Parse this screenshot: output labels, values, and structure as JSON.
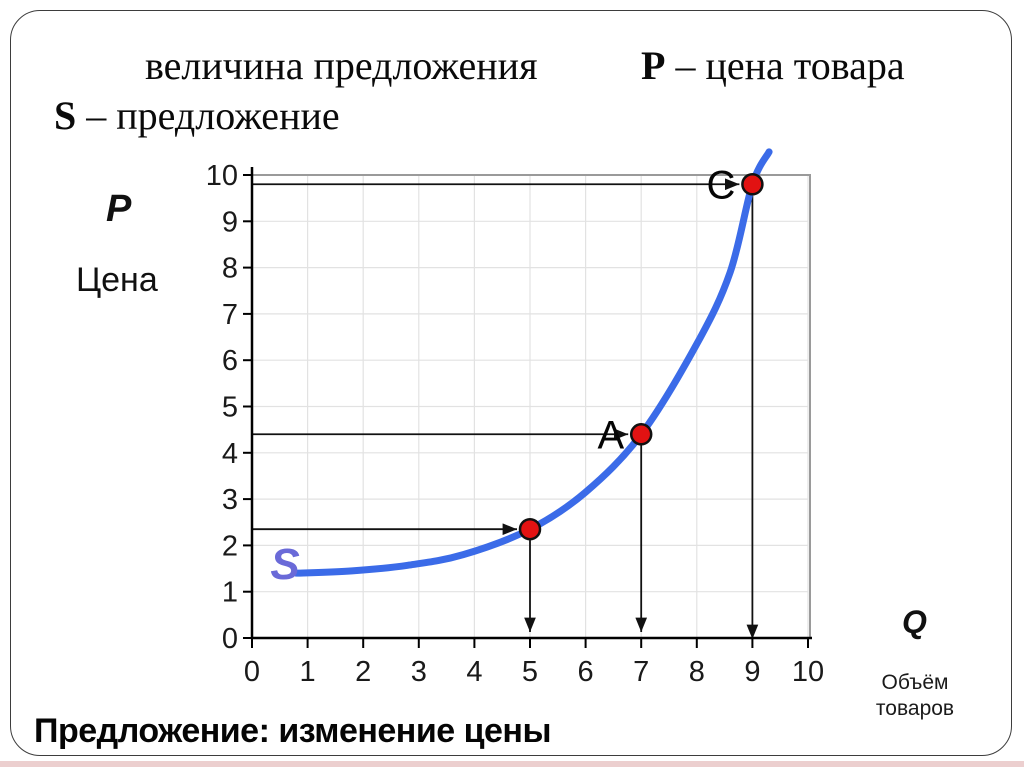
{
  "title": {
    "line1_left": "величина предложения",
    "p_symbol": "P",
    "p_rest": " – цена товара",
    "s_symbol": "S",
    "s_rest": " – предложение"
  },
  "axis_labels": {
    "y_symbol": "P",
    "y_name": "Цена",
    "x_symbol": "Q",
    "x_name_line1": "Объём",
    "x_name_line2": "товаров"
  },
  "footer": {
    "text": "Предложение: изменение цены"
  },
  "colors": {
    "curve": "#3b6be8",
    "curve_label": "#6a6ad8",
    "marker_fill": "#e21212",
    "marker_stroke": "#111111",
    "grid": "#e2e2e2",
    "plot_border": "#9a9a9a",
    "axis": "#000000",
    "arrow": "#111111",
    "tick_text": "#1a1a1a",
    "bottom_strip": "#eccfcf"
  },
  "chart_data": {
    "type": "line",
    "title": "величина предложения",
    "xlabel": "Q — Объём товаров",
    "ylabel": "P — Цена",
    "xlim": [
      0,
      10
    ],
    "ylim": [
      0,
      10
    ],
    "x_ticks": [
      0,
      1,
      2,
      3,
      4,
      5,
      6,
      7,
      8,
      9,
      10
    ],
    "y_ticks": [
      0,
      1,
      2,
      3,
      4,
      5,
      6,
      7,
      8,
      9,
      10
    ],
    "grid": true,
    "series": [
      {
        "name": "S",
        "color": "#3b6be8",
        "points": [
          [
            0.8,
            1.4
          ],
          [
            1.8,
            1.45
          ],
          [
            2.8,
            1.57
          ],
          [
            3.8,
            1.8
          ],
          [
            5,
            2.35
          ],
          [
            6,
            3.15
          ],
          [
            7,
            4.4
          ],
          [
            8,
            6.35
          ],
          [
            8.6,
            7.9
          ],
          [
            9,
            9.8
          ],
          [
            9.3,
            10.5
          ]
        ]
      }
    ],
    "curve_label": {
      "text": "S",
      "color": "#6a6ad8",
      "x": 0.33,
      "y": 1.58
    },
    "marked_points": [
      {
        "label": "",
        "x": 5,
        "y": 2.35
      },
      {
        "label": "A",
        "x": 7,
        "y": 4.4
      },
      {
        "label": "C",
        "x": 9,
        "y": 9.8
      }
    ],
    "marker_color": "#e21212"
  }
}
